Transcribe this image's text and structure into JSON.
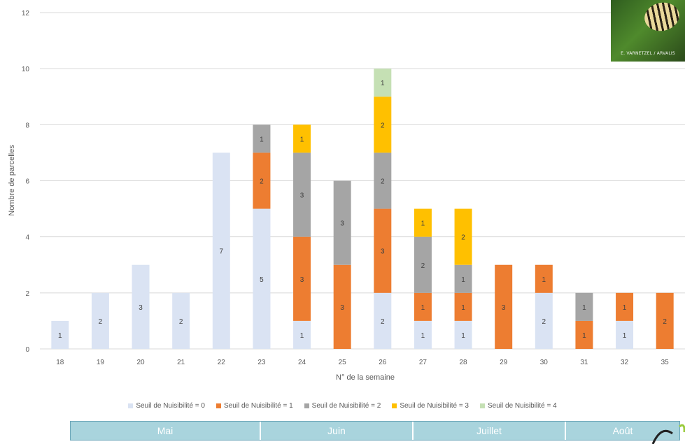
{
  "image_credit": "E. VARNETZEL / ARVALIS",
  "legend": [
    {
      "label": "Seuil de Nuisibilité = 0",
      "color": "#dae3f3"
    },
    {
      "label": "Seuil de Nuisibilité = 1",
      "color": "#ed7d31"
    },
    {
      "label": "Seuil de Nuisibilité = 2",
      "color": "#a5a5a5"
    },
    {
      "label": "Seuil de Nuisibilité = 3",
      "color": "#ffc000"
    },
    {
      "label": "Seuil de Nuisibilité = 4",
      "color": "#c5e0b4"
    }
  ],
  "months": [
    {
      "label": "Mai",
      "weeks": 5
    },
    {
      "label": "Juin",
      "weeks": 4
    },
    {
      "label": "Juillet",
      "weeks": 4
    },
    {
      "label": "Août",
      "weeks": 3
    }
  ],
  "chart_data": {
    "type": "bar",
    "stacked": true,
    "xlabel": "N° de la semaine",
    "ylabel": "Nombre de parcelles",
    "ylim": [
      0,
      12
    ],
    "yticks": [
      0,
      2,
      4,
      6,
      8,
      10,
      12
    ],
    "grid": true,
    "legend_position": "bottom",
    "categories": [
      "18",
      "19",
      "20",
      "21",
      "22",
      "23",
      "24",
      "25",
      "26",
      "27",
      "28",
      "29",
      "30",
      "31",
      "32",
      "35"
    ],
    "series": [
      {
        "name": "Seuil de Nuisibilité = 0",
        "color": "#dae3f3",
        "values": [
          1,
          2,
          3,
          2,
          7,
          5,
          1,
          0,
          2,
          1,
          1,
          0,
          2,
          0,
          1,
          0
        ]
      },
      {
        "name": "Seuil de Nuisibilité = 1",
        "color": "#ed7d31",
        "values": [
          0,
          0,
          0,
          0,
          0,
          2,
          3,
          3,
          3,
          1,
          1,
          3,
          1,
          1,
          1,
          2
        ]
      },
      {
        "name": "Seuil de Nuisibilité = 2",
        "color": "#a5a5a5",
        "values": [
          0,
          0,
          0,
          0,
          0,
          1,
          3,
          3,
          2,
          2,
          1,
          0,
          0,
          1,
          0,
          0
        ]
      },
      {
        "name": "Seuil de Nuisibilité = 3",
        "color": "#ffc000",
        "values": [
          0,
          0,
          0,
          0,
          0,
          0,
          1,
          0,
          2,
          1,
          2,
          0,
          0,
          0,
          0,
          0
        ]
      },
      {
        "name": "Seuil de Nuisibilité = 4",
        "color": "#c5e0b4",
        "values": [
          0,
          0,
          0,
          0,
          0,
          0,
          0,
          0,
          1,
          0,
          0,
          0,
          0,
          0,
          0,
          0
        ]
      }
    ]
  }
}
